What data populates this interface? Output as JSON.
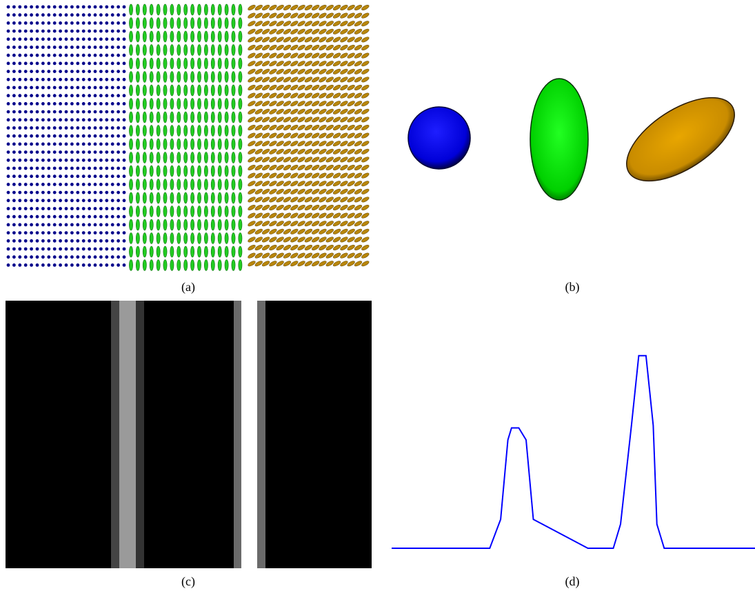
{
  "figure": {
    "panels": [
      {
        "id": "a",
        "caption": "(a)",
        "description_colors": [
          "#00008b",
          "#22cc22",
          "#b8860b"
        ]
      },
      {
        "id": "b",
        "caption": "(b)",
        "colors": {
          "sphere": "#0000ff",
          "prolate": "#00dd00",
          "oblate": "#d49a00"
        }
      },
      {
        "id": "c",
        "caption": "(c)"
      },
      {
        "id": "d",
        "caption": "(d)",
        "line_color": "#0000ff"
      }
    ]
  },
  "chart_data": {
    "type": "line",
    "title": "",
    "xlabel": "",
    "ylabel": "",
    "x": [
      0,
      27,
      30,
      32,
      33,
      35,
      37,
      39,
      54,
      61,
      63,
      66,
      68,
      70,
      72,
      73,
      75,
      100
    ],
    "y": [
      0,
      0,
      12,
      45,
      50,
      50,
      45,
      12,
      0,
      0,
      10,
      51,
      80,
      80,
      51,
      10,
      0,
      0
    ],
    "series": [
      {
        "values": [
          0,
          0,
          12,
          45,
          50,
          50,
          45,
          12,
          0,
          0,
          10,
          51,
          80,
          80,
          51,
          10,
          0,
          0
        ]
      }
    ],
    "ylim": [
      0,
      100
    ],
    "grid": false
  }
}
